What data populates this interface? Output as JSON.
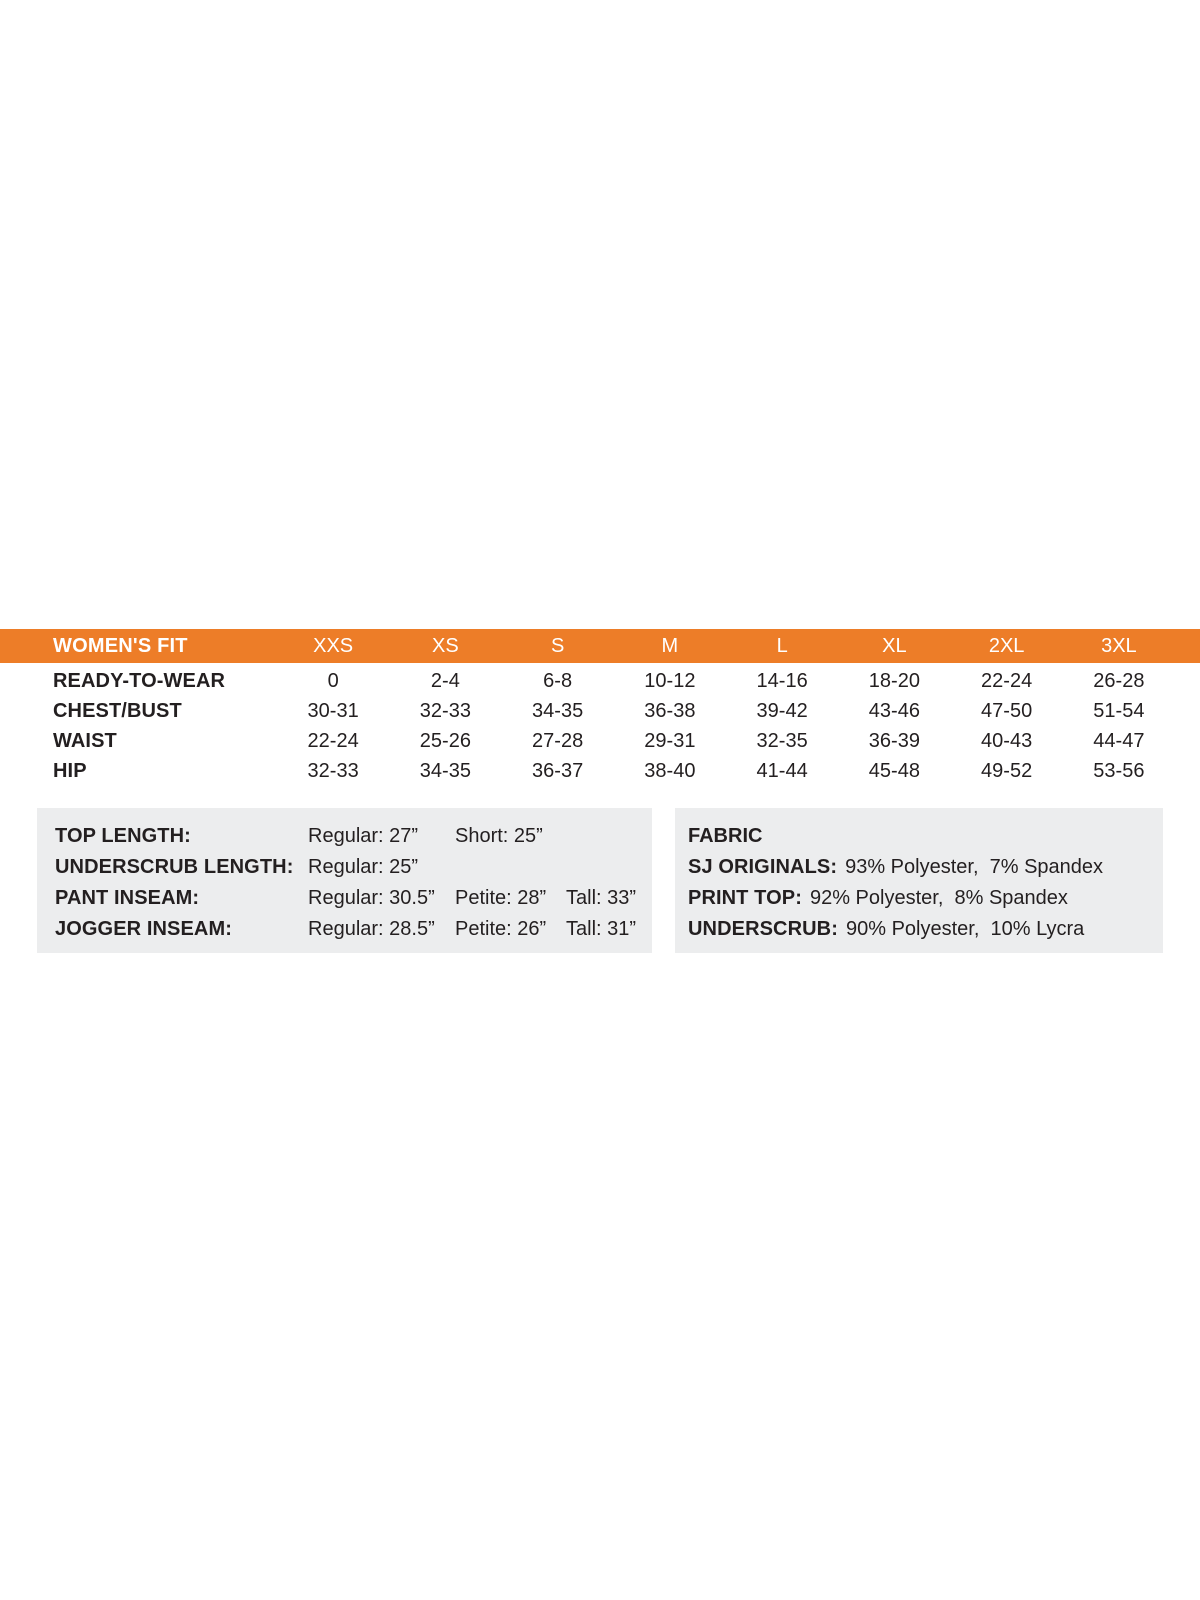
{
  "colors": {
    "accent_orange": "#ed7d28",
    "panel_gray": "#ecedee",
    "text_dark": "#231f20",
    "header_text": "#ffffff"
  },
  "chart_data": {
    "type": "table",
    "title": "WOMEN'S FIT",
    "columns": [
      "XXS",
      "XS",
      "S",
      "M",
      "L",
      "XL",
      "2XL",
      "3XL"
    ],
    "rows": [
      {
        "label": "READY-TO-WEAR",
        "values": [
          "0",
          "2-4",
          "6-8",
          "10-12",
          "14-16",
          "18-20",
          "22-24",
          "26-28"
        ]
      },
      {
        "label": "CHEST/BUST",
        "values": [
          "30-31",
          "32-33",
          "34-35",
          "36-38",
          "39-42",
          "43-46",
          "47-50",
          "51-54"
        ]
      },
      {
        "label": "WAIST",
        "values": [
          "22-24",
          "25-26",
          "27-28",
          "29-31",
          "32-35",
          "36-39",
          "40-43",
          "44-47"
        ]
      },
      {
        "label": "HIP",
        "values": [
          "32-33",
          "34-35",
          "36-37",
          "38-40",
          "41-44",
          "45-48",
          "49-52",
          "53-56"
        ]
      }
    ]
  },
  "table": {
    "header": {
      "label": "WOMEN'S FIT",
      "sizes": [
        "XXS",
        "XS",
        "S",
        "M",
        "L",
        "XL",
        "2XL",
        "3XL"
      ]
    },
    "rows": [
      {
        "label": "READY-TO-WEAR",
        "values": [
          "0",
          "2-4",
          "6-8",
          "10-12",
          "14-16",
          "18-20",
          "22-24",
          "26-28"
        ]
      },
      {
        "label": "CHEST/BUST",
        "values": [
          "30-31",
          "32-33",
          "34-35",
          "36-38",
          "39-42",
          "43-46",
          "47-50",
          "51-54"
        ]
      },
      {
        "label": "WAIST",
        "values": [
          "22-24",
          "25-26",
          "27-28",
          "29-31",
          "32-35",
          "36-39",
          "40-43",
          "44-47"
        ]
      },
      {
        "label": "HIP",
        "values": [
          "32-33",
          "34-35",
          "36-37",
          "38-40",
          "41-44",
          "45-48",
          "49-52",
          "53-56"
        ]
      }
    ]
  },
  "measurements": {
    "rows": [
      {
        "label": "TOP LENGTH:",
        "values": [
          "Regular: 27”",
          "Short: 25”",
          ""
        ]
      },
      {
        "label": "UNDERSCRUB LENGTH:",
        "values": [
          "Regular: 25”",
          "",
          ""
        ]
      },
      {
        "label": "PANT INSEAM:",
        "values": [
          "Regular: 30.5”",
          "Petite: 28”",
          "Tall: 33”"
        ]
      },
      {
        "label": "JOGGER INSEAM:",
        "values": [
          "Regular: 28.5”",
          "Petite: 26”",
          "Tall: 31”"
        ]
      }
    ]
  },
  "fabric": {
    "title": "FABRIC",
    "rows": [
      {
        "label": "SJ ORIGINALS:",
        "value": "93% Polyester,  7% Spandex"
      },
      {
        "label": "PRINT TOP:",
        "value": "92% Polyester,  8% Spandex"
      },
      {
        "label": "UNDERSCRUB:",
        "value": "90% Polyester,  10% Lycra"
      }
    ]
  }
}
